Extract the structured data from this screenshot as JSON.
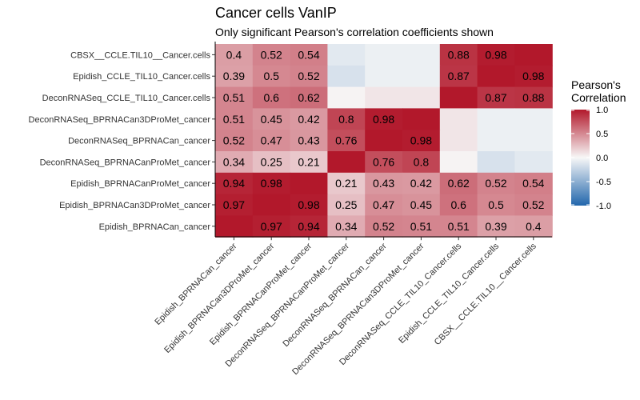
{
  "chart_data": {
    "type": "heatmap",
    "title": "Cancer cells VanIP",
    "subtitle": "Only significant Pearson's correlation coefficients shown",
    "x_categories": [
      "Epidish_BPRNACan_cancer",
      "Epidish_BPRNACan3DProMet_cancer",
      "Epidish_BPRNACanProMet_cancer",
      "DeconRNASeq_BPRNACanProMet_cancer",
      "DeconRNASeq_BPRNACan_cancer",
      "DeconRNASeq_BPRNACan3DProMet_cancer",
      "DeconRNASeq_CCLE_TIL10_Cancer.cells",
      "Epidish_CCLE_TIL10_Cancer.cells",
      "CBSX__CCLE.TIL10__Cancer.cells"
    ],
    "y_categories_top_to_bottom": [
      "CBSX__CCLE.TIL10__Cancer.cells",
      "Epidish_CCLE_TIL10_Cancer.cells",
      "DeconRNASeq_CCLE_TIL10_Cancer.cells",
      "DeconRNASeq_BPRNACan3DProMet_cancer",
      "DeconRNASeq_BPRNACan_cancer",
      "DeconRNASeq_BPRNACanProMet_cancer",
      "Epidish_BPRNACanProMet_cancer",
      "Epidish_BPRNACan3DProMet_cancer",
      "Epidish_BPRNACan_cancer"
    ],
    "values": [
      [
        0.4,
        0.52,
        0.54,
        -0.1,
        -0.05,
        -0.05,
        0.88,
        0.98,
        1.0
      ],
      [
        0.39,
        0.5,
        0.52,
        -0.15,
        -0.05,
        -0.05,
        0.87,
        1.0,
        0.98
      ],
      [
        0.51,
        0.6,
        0.62,
        0.02,
        0.08,
        0.08,
        1.0,
        0.87,
        0.88
      ],
      [
        0.51,
        0.45,
        0.42,
        0.8,
        0.98,
        1.0,
        0.08,
        -0.05,
        -0.05
      ],
      [
        0.52,
        0.47,
        0.43,
        0.76,
        1.0,
        0.98,
        0.08,
        -0.05,
        -0.05
      ],
      [
        0.34,
        0.25,
        0.21,
        1.0,
        0.76,
        0.8,
        0.02,
        -0.15,
        -0.1
      ],
      [
        0.94,
        0.98,
        1.0,
        0.21,
        0.43,
        0.42,
        0.62,
        0.52,
        0.54
      ],
      [
        0.97,
        1.0,
        0.98,
        0.25,
        0.47,
        0.45,
        0.6,
        0.5,
        0.52
      ],
      [
        1.0,
        0.97,
        0.94,
        0.34,
        0.52,
        0.51,
        0.51,
        0.39,
        0.4
      ]
    ],
    "labels": [
      [
        "0.4",
        "0.52",
        "0.54",
        "",
        "",
        "",
        "0.88",
        "0.98",
        ""
      ],
      [
        "0.39",
        "0.5",
        "0.52",
        "",
        "",
        "",
        "0.87",
        "",
        "0.98"
      ],
      [
        "0.51",
        "0.6",
        "0.62",
        "",
        "",
        "",
        "",
        "0.87",
        "0.88"
      ],
      [
        "0.51",
        "0.45",
        "0.42",
        "0.8",
        "0.98",
        "",
        "",
        "",
        ""
      ],
      [
        "0.52",
        "0.47",
        "0.43",
        "0.76",
        "",
        "0.98",
        "",
        "",
        ""
      ],
      [
        "0.34",
        "0.25",
        "0.21",
        "",
        "0.76",
        "0.8",
        "",
        "",
        ""
      ],
      [
        "0.94",
        "0.98",
        "",
        "0.21",
        "0.43",
        "0.42",
        "0.62",
        "0.52",
        "0.54"
      ],
      [
        "0.97",
        "",
        "0.98",
        "0.25",
        "0.47",
        "0.45",
        "0.6",
        "0.5",
        "0.52"
      ],
      [
        "",
        "0.97",
        "0.94",
        "0.34",
        "0.52",
        "0.51",
        "0.51",
        "0.39",
        "0.4"
      ]
    ],
    "legend": {
      "title_lines": [
        "Pearson's",
        "Correlation"
      ],
      "range": [
        -1,
        1
      ],
      "ticks": [
        1.0,
        0.5,
        0.0,
        -0.5,
        -1.0
      ],
      "tick_labels": [
        "1.0",
        "0.5",
        "0.0",
        "-0.5",
        "-1.0"
      ],
      "placement": "right"
    },
    "colors": {
      "high": "#B2182B",
      "mid": "#F7F7F7",
      "low": "#2166AC"
    }
  }
}
